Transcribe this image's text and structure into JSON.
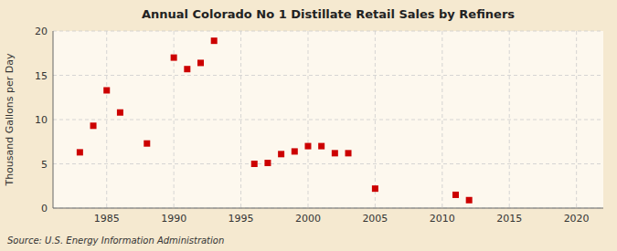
{
  "chart_data": {
    "type": "scatter",
    "title": "Annual Colorado No 1 Distillate Retail Sales by Refiners",
    "y_label": "Thousand Gallons per Day",
    "source": "Source: U.S. Energy Information Administration",
    "x": [
      1983,
      1984,
      1985,
      1986,
      1988,
      1990,
      1991,
      1992,
      1993,
      1996,
      1997,
      1998,
      1999,
      2000,
      2001,
      2002,
      2003,
      2005,
      2011,
      2012
    ],
    "values": [
      6.3,
      9.3,
      13.3,
      10.8,
      7.3,
      17.0,
      15.7,
      16.4,
      18.9,
      5.0,
      5.1,
      6.1,
      6.4,
      7.0,
      7.0,
      6.2,
      6.2,
      2.2,
      1.5,
      0.9
    ],
    "color": "#cc0000",
    "marker": "square",
    "xlim": [
      1981,
      2022
    ],
    "ylim": [
      0,
      20
    ],
    "xticks": [
      1985,
      1990,
      1995,
      2000,
      2005,
      2010,
      2015,
      2020
    ],
    "yticks": [
      0,
      5,
      10,
      15,
      20
    ],
    "grid": true
  }
}
